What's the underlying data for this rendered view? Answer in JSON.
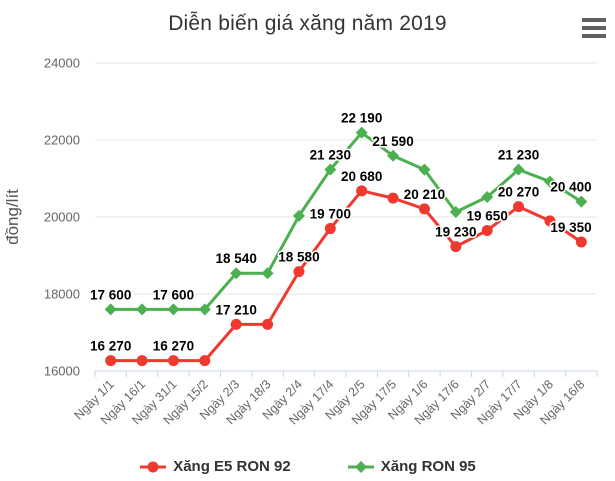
{
  "header": {
    "title": "Diễn biến giá xăng năm 2019",
    "menu_icon": "hamburger-icon"
  },
  "chart_data": {
    "type": "line",
    "title": "Diễn biến giá xăng năm 2019",
    "xlabel": "",
    "ylabel": "đồng/lít",
    "ylim": [
      16000,
      24000
    ],
    "yticks": [
      16000,
      18000,
      20000,
      22000,
      24000
    ],
    "grid": true,
    "legend_position": "bottom",
    "label_format": "space-thousands",
    "categories": [
      "Ngày 1/1",
      "Ngày 16/1",
      "Ngày 31/1",
      "Ngày 15/2",
      "Ngày 2/3",
      "Ngày 18/3",
      "Ngày 2/4",
      "Ngày 17/4",
      "Ngày 2/5",
      "Ngày 17/5",
      "Ngày 1/6",
      "Ngày 17/6",
      "Ngày 2/7",
      "Ngày 17/7",
      "Ngày 1/8",
      "Ngày 16/8"
    ],
    "series": [
      {
        "name": "Xăng E5 RON 92",
        "color": "#f0392e",
        "marker": "circle",
        "values": [
          16270,
          16270,
          16270,
          16270,
          17210,
          17210,
          18580,
          19700,
          20680,
          20490,
          20210,
          19230,
          19650,
          20270,
          19900,
          19350
        ],
        "visible_labels": [
          0,
          2,
          4,
          6,
          7,
          8,
          10,
          11,
          12,
          13,
          15
        ]
      },
      {
        "name": "Xăng RON 95",
        "color": "#4caf50",
        "marker": "diamond",
        "values": [
          17600,
          17600,
          17600,
          17600,
          18540,
          18540,
          20030,
          21230,
          22190,
          21590,
          21230,
          20130,
          20520,
          21230,
          20920,
          20400
        ],
        "visible_labels": [
          0,
          2,
          4,
          7,
          8,
          9,
          13,
          15
        ]
      }
    ]
  },
  "colors": {
    "title": "#333333",
    "axis_labels": "#666666",
    "axis_line": "#ccd6eb",
    "gridline": "#e6e6e6",
    "data_label": "#000000",
    "menu_icon": "#606060",
    "background": "#ffffff"
  }
}
